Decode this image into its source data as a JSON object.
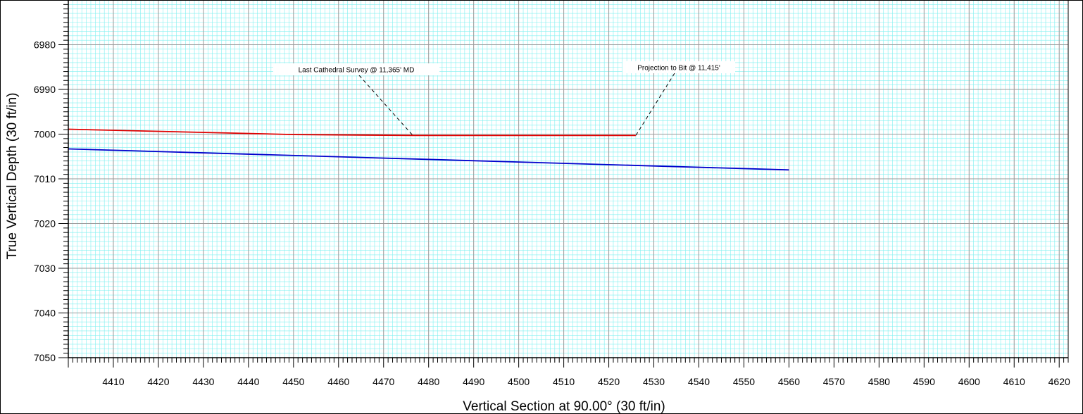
{
  "chart_data": {
    "type": "line",
    "xlabel": "Vertical Section at 90.00° (30 ft/in)",
    "ylabel": "True Vertical Depth (30 ft/in)",
    "xlim": [
      4400,
      4622
    ],
    "ylim": [
      6970,
      7050
    ],
    "y_inverted": true,
    "x_ticks": [
      4410,
      4420,
      4430,
      4440,
      4450,
      4460,
      4470,
      4480,
      4490,
      4500,
      4510,
      4520,
      4530,
      4540,
      4550,
      4560,
      4570,
      4580,
      4590,
      4600,
      4610,
      4620
    ],
    "y_ticks": [
      6980,
      6990,
      7000,
      7010,
      7020,
      7030,
      7040,
      7050
    ],
    "grid": true,
    "colors": {
      "grid_minor": "#7ff0f0",
      "grid_major": "#999999",
      "red_series": "#e00000",
      "blue_series": "#0000cc"
    },
    "series": [
      {
        "color": "#e00000",
        "x": [
          4400,
          4450,
          4476.5,
          4526
        ],
        "y": [
          6998.9,
          7000.1,
          7000.3,
          7000.3
        ]
      },
      {
        "color": "#0000cc",
        "x": [
          4400,
          4560
        ],
        "y": [
          7003.3,
          7008.0
        ]
      }
    ],
    "annotations": [
      {
        "text": "Last Cathedral Survey @ 11,365' MD",
        "anchor_x": 4476.5,
        "anchor_y": 7000.3
      },
      {
        "text": "Projection to Bit @ 11,415'",
        "anchor_x": 4526,
        "anchor_y": 7000.3
      }
    ]
  }
}
